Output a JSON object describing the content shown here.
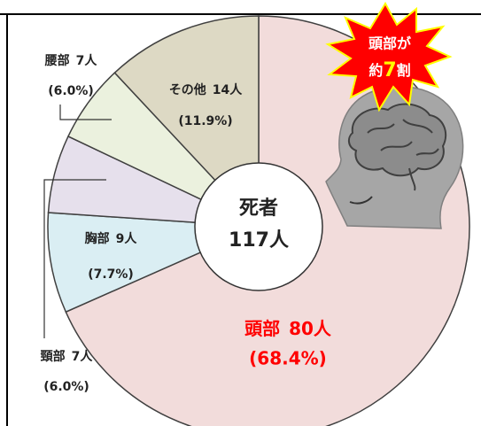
{
  "chart_data": {
    "type": "pie",
    "categories": [
      "頭部",
      "胸部",
      "頸部",
      "腰部",
      "その他"
    ],
    "values": [
      80,
      9,
      7,
      7,
      14
    ],
    "value_labels": [
      "80人",
      "9人",
      "7人",
      "7人",
      "14人"
    ],
    "percentages": [
      68.4,
      7.7,
      6.0,
      6.0,
      11.9
    ],
    "percentage_labels": [
      "(68.4%)",
      "(7.7%)",
      "(6.0%)",
      "(6.0%)",
      "(11.9%)"
    ],
    "colors": [
      "#f2dcdb",
      "#daeef3",
      "#e6e0ec",
      "#ebf1de",
      "#ddd9c4"
    ],
    "center_title": "死者",
    "total": 117,
    "total_label": "117人",
    "callout": {
      "line1": "頭部が",
      "line2": [
        "約",
        "7",
        "割"
      ]
    }
  }
}
